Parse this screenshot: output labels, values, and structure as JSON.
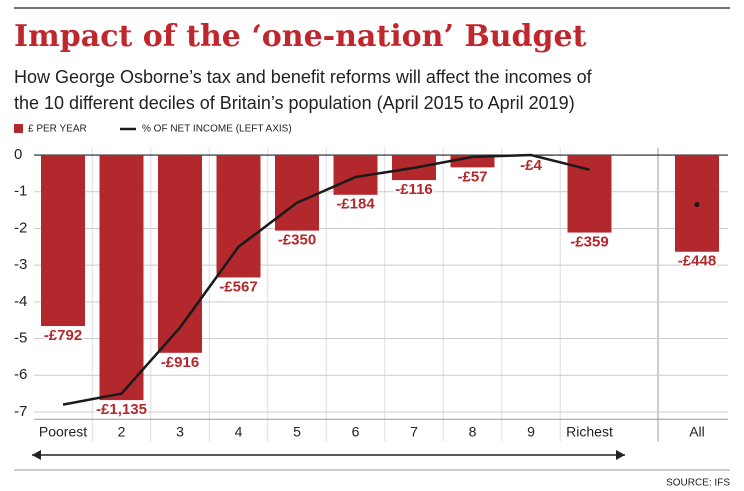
{
  "chart_data": {
    "type": "bar_line",
    "title": "Impact of the ‘one-nation’ Budget",
    "subtitle": [
      "How George Osborne’s tax and benefit reforms will affect the incomes of",
      "the 10 different deciles of Britain’s population (April 2015 to April 2019)"
    ],
    "categories": [
      "Poorest",
      "2",
      "3",
      "4",
      "5",
      "6",
      "7",
      "8",
      "9",
      "Richest",
      "All"
    ],
    "series": [
      {
        "name": "£ PER YEAR",
        "type": "bar",
        "axis": "y2",
        "color": "#b3282d",
        "values": [
          -792,
          -1135,
          -916,
          -567,
          -350,
          -184,
          -116,
          -57,
          -4,
          -359,
          -448
        ],
        "value_labels": [
          "-£792",
          "-£1,135",
          "-£916",
          "-£567",
          "-£350",
          "-£184",
          "-£116",
          "-£57",
          "-£4",
          "-£359",
          "-£448"
        ]
      },
      {
        "name": "% OF NET INCOME (LEFT AXIS)",
        "type": "line",
        "color": "#1a1a1a",
        "values": [
          -6.8,
          -6.5,
          -4.7,
          -2.5,
          -1.3,
          -0.6,
          -0.35,
          -0.05,
          0,
          -0.4,
          -1.35
        ]
      }
    ],
    "ylim": [
      -7.2,
      0.2
    ],
    "yticks": [
      0,
      -1,
      -2,
      -3,
      -4,
      -5,
      -6,
      -7
    ],
    "y2lim": [
      -1224,
      34
    ],
    "grid": true,
    "source": "SOURCE: IFS"
  }
}
